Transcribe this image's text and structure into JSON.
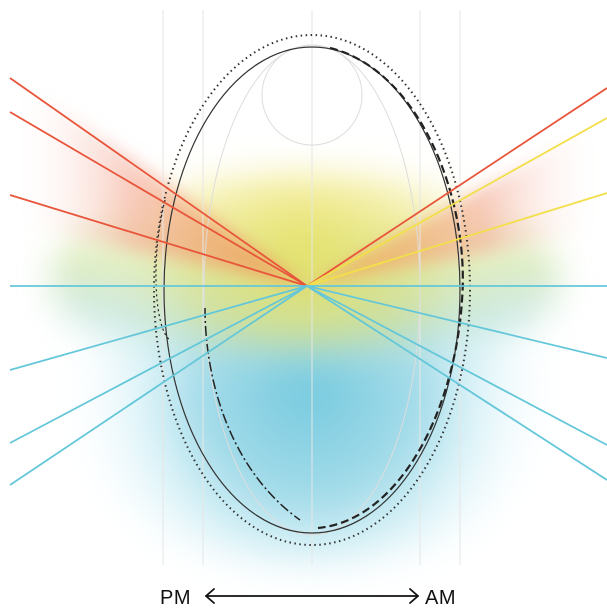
{
  "diagram": {
    "left_label": "PM",
    "right_label": "AM",
    "ray_colors": {
      "warm_red": "#e8553a",
      "warm_yellow": "#f2df4a",
      "cool_blue": "#64c7d9"
    },
    "glow_colors": {
      "red": "#f08a74",
      "orange": "#f6b34a",
      "yellow": "#eee56a",
      "green": "#b7d978",
      "teal": "#8fd0c8",
      "blue": "#7fcde0"
    },
    "arrow": "double-headed-horizontal-arrow"
  }
}
